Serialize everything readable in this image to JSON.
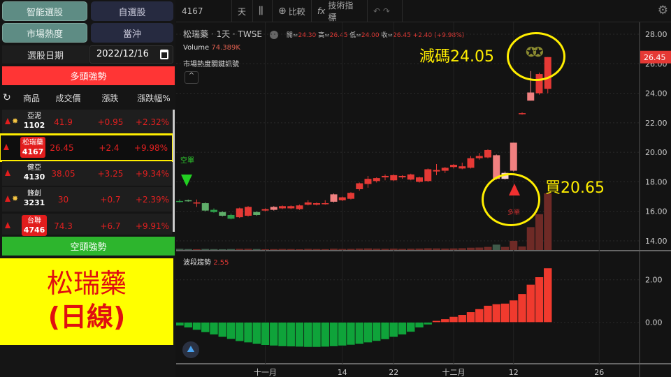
{
  "left": {
    "tabs": [
      {
        "label": "智能選股",
        "active": true
      },
      {
        "label": "自選股",
        "active": false
      },
      {
        "label": "市場熱度",
        "active": true
      },
      {
        "label": "當沖",
        "active": false
      }
    ],
    "date_label": "選股日期",
    "date_value": "2022/12/16",
    "calendar_icon": "calendar-icon",
    "bull_title": "多頭強勢",
    "bear_title": "空頭強勢",
    "columns": [
      "商品",
      "成交價",
      "漲跌",
      "漲跌幅%"
    ],
    "refresh_icon": "refresh-icon",
    "rows": [
      {
        "name": "亞泥",
        "code": "1102",
        "price": "41.9",
        "change": "+0.95",
        "pct": "+2.32%",
        "sun": true,
        "tag": false
      },
      {
        "name": "松瑞藥",
        "code": "4167",
        "price": "26.45",
        "change": "+2.4",
        "pct": "+9.98%",
        "sun": false,
        "tag": true
      },
      {
        "name": "健亞",
        "code": "4130",
        "price": "38.05",
        "change": "+3.25",
        "pct": "+9.34%",
        "sun": false,
        "tag": false
      },
      {
        "name": "鋒創",
        "code": "3231",
        "price": "30",
        "change": "+0.7",
        "pct": "+2.39%",
        "sun": true,
        "tag": false
      },
      {
        "name": "台聯",
        "code": "4746",
        "price": "74.3",
        "change": "+6.7",
        "pct": "+9.91%",
        "sun": false,
        "tag": true
      }
    ],
    "caption_line1": "松瑞藥",
    "caption_line2": "(日線)"
  },
  "toolbar": {
    "symbol": "4167",
    "interval": "天",
    "compare": "比較",
    "indicators": "技術指標"
  },
  "legend": {
    "title": "松瑞藥 · 1天 · TWSE",
    "o_label": "開=",
    "o": "24.30",
    "h_label": "高=",
    "h": "26.45",
    "l_label": "低=",
    "l": "24.00",
    "c_label": "收=",
    "c": "26.45",
    "chg": "+2.40 (+9.98%)",
    "volume_label": "Volume",
    "volume": "74.389K",
    "signal_label": "市場熱度關鍵訊號"
  },
  "annotations": {
    "sell": "減碼24.05",
    "buy": "買20.65",
    "short_label": "空單",
    "long_label": "多單"
  },
  "colors": {
    "up": "#e53935",
    "up_light": "#f08080",
    "down": "#2e9e4a",
    "down_light": "#5fae6a",
    "annot": "#ffee00"
  },
  "chart_data": [
    {
      "type": "candlestick",
      "ylim": [
        13.4,
        28.8
      ],
      "yticks": [
        "28.00",
        "26.00",
        "24.00",
        "22.00",
        "20.00",
        "18.00",
        "16.00",
        "14.00"
      ],
      "last_price": "26.45",
      "xticks": [
        {
          "label": "十一月",
          "at_bar": 11
        },
        {
          "label": "14",
          "at_bar": 20
        },
        {
          "label": "22",
          "at_bar": 26
        },
        {
          "label": "十二月",
          "at_bar": 33
        },
        {
          "label": "12",
          "at_bar": 40
        },
        {
          "label": "26",
          "at_bar": 50
        }
      ],
      "ohlc": [
        [
          16.7,
          16.8,
          16.6,
          16.65
        ],
        [
          16.75,
          16.8,
          16.65,
          16.7
        ],
        [
          16.6,
          16.8,
          16.3,
          16.6
        ],
        [
          16.55,
          16.6,
          16.0,
          16.05
        ],
        [
          16.1,
          16.2,
          15.9,
          15.95
        ],
        [
          15.95,
          16.0,
          15.65,
          15.7
        ],
        [
          15.75,
          15.85,
          15.45,
          15.5
        ],
        [
          15.6,
          16.25,
          15.55,
          16.2
        ],
        [
          15.7,
          16.35,
          15.65,
          16.3
        ],
        [
          15.95,
          16.0,
          15.7,
          15.75
        ],
        [
          16.05,
          16.2,
          16.0,
          16.15
        ],
        [
          16.1,
          16.35,
          16.05,
          16.3
        ],
        [
          16.2,
          16.4,
          16.15,
          16.35
        ],
        [
          16.2,
          16.4,
          16.15,
          16.35
        ],
        [
          16.15,
          16.45,
          16.1,
          16.4
        ],
        [
          16.45,
          16.75,
          16.4,
          16.6
        ],
        [
          16.45,
          16.6,
          16.4,
          16.55
        ],
        [
          16.5,
          16.75,
          16.45,
          16.55
        ],
        [
          16.65,
          17.2,
          16.6,
          17.15
        ],
        [
          16.75,
          17.0,
          16.7,
          16.95
        ],
        [
          16.85,
          17.3,
          16.8,
          17.25
        ],
        [
          17.5,
          17.95,
          17.4,
          17.9
        ],
        [
          17.85,
          18.4,
          17.6,
          18.2
        ],
        [
          18.05,
          18.3,
          17.95,
          18.25
        ],
        [
          18.3,
          18.5,
          18.1,
          18.4
        ],
        [
          18.1,
          18.5,
          18.05,
          18.45
        ],
        [
          18.3,
          18.45,
          18.2,
          18.4
        ],
        [
          18.15,
          18.55,
          18.1,
          18.5
        ],
        [
          18.0,
          18.35,
          17.95,
          18.3
        ],
        [
          18.05,
          18.9,
          18.0,
          18.85
        ],
        [
          18.7,
          19.2,
          18.45,
          18.8
        ],
        [
          18.75,
          19.0,
          18.6,
          18.95
        ],
        [
          19.0,
          19.2,
          18.9,
          19.15
        ],
        [
          18.9,
          19.3,
          18.85,
          19.05
        ],
        [
          18.95,
          19.75,
          18.9,
          19.6
        ],
        [
          19.6,
          19.95,
          19.5,
          19.75
        ],
        [
          19.65,
          20.2,
          19.6,
          20.15
        ],
        [
          19.8,
          19.85,
          18.15,
          18.2
        ],
        [
          18.2,
          18.7,
          18.15,
          18.6
        ],
        [
          18.75,
          20.65,
          18.7,
          20.65
        ],
        [
          22.6,
          22.7,
          22.55,
          22.65
        ],
        [
          23.5,
          25.5,
          23.5,
          24.05
        ],
        [
          24.0,
          25.4,
          23.9,
          25.3
        ],
        [
          24.3,
          26.45,
          24.0,
          26.45
        ]
      ],
      "volume_k": [
        1.5,
        1.2,
        1.0,
        1.3,
        1.1,
        1.0,
        1.2,
        1.4,
        1.5,
        1.2,
        1.0,
        1.1,
        1.3,
        1.2,
        1.0,
        1.4,
        1.2,
        1.1,
        1.6,
        1.3,
        1.4,
        1.8,
        2.0,
        1.6,
        1.5,
        1.7,
        1.4,
        1.6,
        1.8,
        2.2,
        2.0,
        1.8,
        2.0,
        2.3,
        3.0,
        3.2,
        4.0,
        7.0,
        4.0,
        12.0,
        4.5,
        30.0,
        47.0,
        74.389
      ]
    },
    {
      "type": "bar",
      "title": "波段趨勢",
      "last_value": "2.55",
      "ylim": [
        -2.6,
        3.2
      ],
      "yticks": [
        "2.00",
        "0.00"
      ],
      "values": [
        -0.16,
        -0.25,
        -0.36,
        -0.47,
        -0.58,
        -0.69,
        -0.79,
        -0.89,
        -0.95,
        -1.02,
        -1.07,
        -1.1,
        -1.13,
        -1.14,
        -1.15,
        -1.16,
        -1.16,
        -1.15,
        -1.13,
        -1.1,
        -1.06,
        -1.02,
        -0.95,
        -0.88,
        -0.8,
        -0.69,
        -0.58,
        -0.45,
        -0.25,
        -0.11,
        0.08,
        0.16,
        0.27,
        0.36,
        0.49,
        0.63,
        0.79,
        0.86,
        0.89,
        1.04,
        1.34,
        1.78,
        2.13,
        2.55
      ]
    }
  ]
}
